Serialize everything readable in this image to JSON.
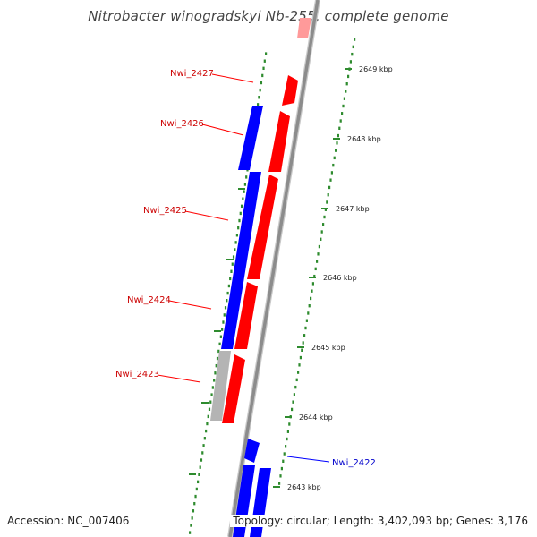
{
  "title": "Nitrobacter winogradskyi Nb-255, complete genome",
  "footer": {
    "accession": "Accession: NC_007406",
    "info": "Topology: circular; Length: 3,402,093 bp; Genes: 3,176"
  },
  "colors": {
    "reverse_strand": "#0000ff",
    "forward_strand": "#ff0000",
    "forward_partial": "#ff9a9a",
    "other_feature": "#b4b4b4",
    "backbone": "#8c8c8c",
    "tick": "#2e8b2e",
    "label_forward": "#cc0000",
    "label_reverse": "#0000cc"
  },
  "ticks": [
    {
      "label": "2649 kbp"
    },
    {
      "label": "2648 kbp"
    },
    {
      "label": "2647 kbp"
    },
    {
      "label": "2646 kbp"
    },
    {
      "label": "2645 kbp"
    },
    {
      "label": "2644 kbp"
    },
    {
      "label": "2643 kbp"
    }
  ],
  "genes": [
    {
      "label": "Nwi_2427",
      "strand": "forward"
    },
    {
      "label": "Nwi_2426",
      "strand": "reverse"
    },
    {
      "label": "Nwi_2425",
      "strand": "forward"
    },
    {
      "label": "Nwi_2424",
      "strand": "reverse"
    },
    {
      "label": "Nwi_2423",
      "strand": "other"
    },
    {
      "label": "Nwi_2422",
      "strand": "reverse"
    }
  ]
}
